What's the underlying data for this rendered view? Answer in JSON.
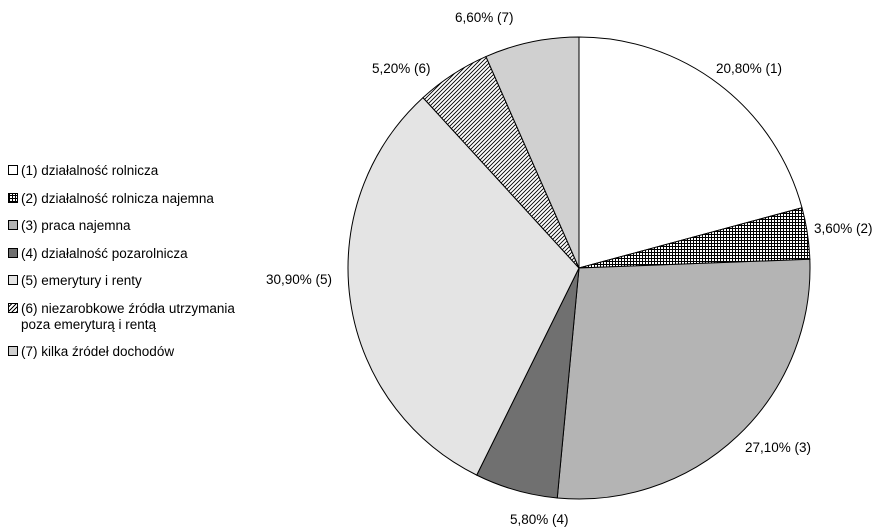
{
  "chart_data": {
    "type": "pie",
    "start_angle_deg": 0,
    "direction": "clockwise",
    "slices": [
      {
        "key": "1",
        "value": 20.8,
        "label": "20,80% (1)",
        "legend": "(1) działalność rolnicza",
        "pattern": "white"
      },
      {
        "key": "2",
        "value": 3.6,
        "label": "3,60% (2)",
        "legend": "(2) działalność rolnicza najemna",
        "pattern": "grid"
      },
      {
        "key": "3",
        "value": 27.1,
        "label": "27,10% (3)",
        "legend": "(3) praca najemna",
        "pattern": "mid-gray"
      },
      {
        "key": "4",
        "value": 5.8,
        "label": "5,80% (4)",
        "legend": "(4) działalność pozarolnicza",
        "pattern": "dark-gray"
      },
      {
        "key": "5",
        "value": 30.9,
        "label": "30,90% (5)",
        "legend": "(5) emerytury i renty",
        "pattern": "light-gray"
      },
      {
        "key": "6",
        "value": 5.2,
        "label": "5,20% (6)",
        "legend": "(6) niezarobkowe źródła utrzymania\npoza emeryturą i rentą",
        "pattern": "hatch"
      },
      {
        "key": "7",
        "value": 6.6,
        "label": "6,60% (7)",
        "legend": "(7) kilka źródeł dochodów",
        "pattern": "pale-gray"
      }
    ],
    "colors": {
      "white": "#ffffff",
      "mid-gray": "#b4b4b4",
      "dark-gray": "#707070",
      "light-gray": "#e4e4e4",
      "pale-gray": "#d0d0d0",
      "outline": "#000000"
    }
  }
}
